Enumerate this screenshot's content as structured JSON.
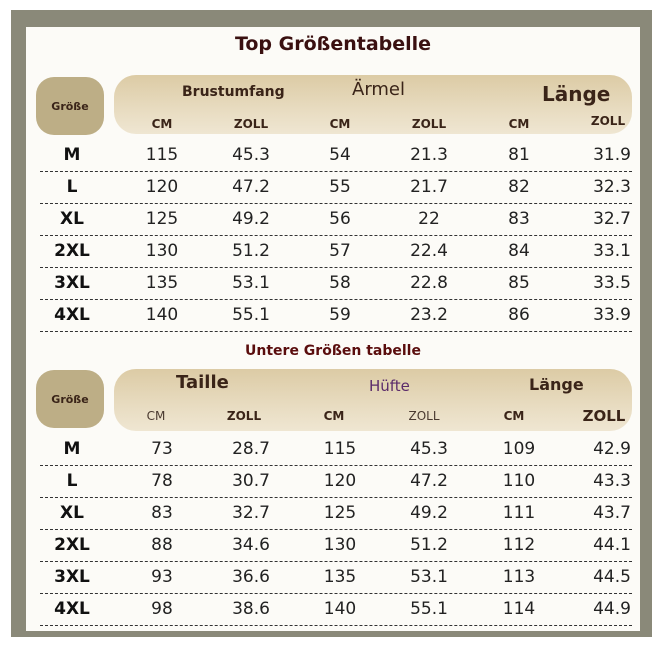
{
  "top": {
    "title": "Top Größentabelle",
    "size_label": "Größe",
    "groups": [
      "Brustumfang",
      "Ärmel",
      "Länge"
    ],
    "units": [
      "CM",
      "ZOLL",
      "CM",
      "ZOLL",
      "CM",
      "ZOLL"
    ],
    "rows": [
      {
        "size": "M",
        "values": [
          "115",
          "45.3",
          "54",
          "21.3",
          "81",
          "31.9"
        ]
      },
      {
        "size": "L",
        "values": [
          "120",
          "47.2",
          "55",
          "21.7",
          "82",
          "32.3"
        ]
      },
      {
        "size": "XL",
        "values": [
          "125",
          "49.2",
          "56",
          "22",
          "83",
          "32.7"
        ]
      },
      {
        "size": "2XL",
        "values": [
          "130",
          "51.2",
          "57",
          "22.4",
          "84",
          "33.1"
        ]
      },
      {
        "size": "3XL",
        "values": [
          "135",
          "53.1",
          "58",
          "22.8",
          "85",
          "33.5"
        ]
      },
      {
        "size": "4XL",
        "values": [
          "140",
          "55.1",
          "59",
          "23.2",
          "86",
          "33.9"
        ]
      }
    ]
  },
  "bottom": {
    "title": "Untere Größen tabelle",
    "size_label": "Größe",
    "groups": [
      "Taille",
      "Hüfte",
      "Länge"
    ],
    "units": [
      "CM",
      "ZOLL",
      "CM",
      "ZOLL",
      "CM",
      "ZOLL"
    ],
    "rows": [
      {
        "size": "M",
        "values": [
          "73",
          "28.7",
          "115",
          "45.3",
          "109",
          "42.9"
        ]
      },
      {
        "size": "L",
        "values": [
          "78",
          "30.7",
          "120",
          "47.2",
          "110",
          "43.3"
        ]
      },
      {
        "size": "XL",
        "values": [
          "83",
          "32.7",
          "125",
          "49.2",
          "111",
          "43.7"
        ]
      },
      {
        "size": "2XL",
        "values": [
          "88",
          "34.6",
          "130",
          "51.2",
          "112",
          "44.1"
        ]
      },
      {
        "size": "3XL",
        "values": [
          "93",
          "36.6",
          "135",
          "53.1",
          "113",
          "44.5"
        ]
      },
      {
        "size": "4XL",
        "values": [
          "98",
          "38.6",
          "140",
          "55.1",
          "114",
          "44.9"
        ]
      }
    ]
  },
  "colors": {
    "frame": "#8a8979",
    "sheet": "#fcfbf7",
    "header_band": "#dccba5",
    "size_pill": "#bdae86",
    "title": "#3a1010",
    "hips_label": "#5a2a6a"
  }
}
